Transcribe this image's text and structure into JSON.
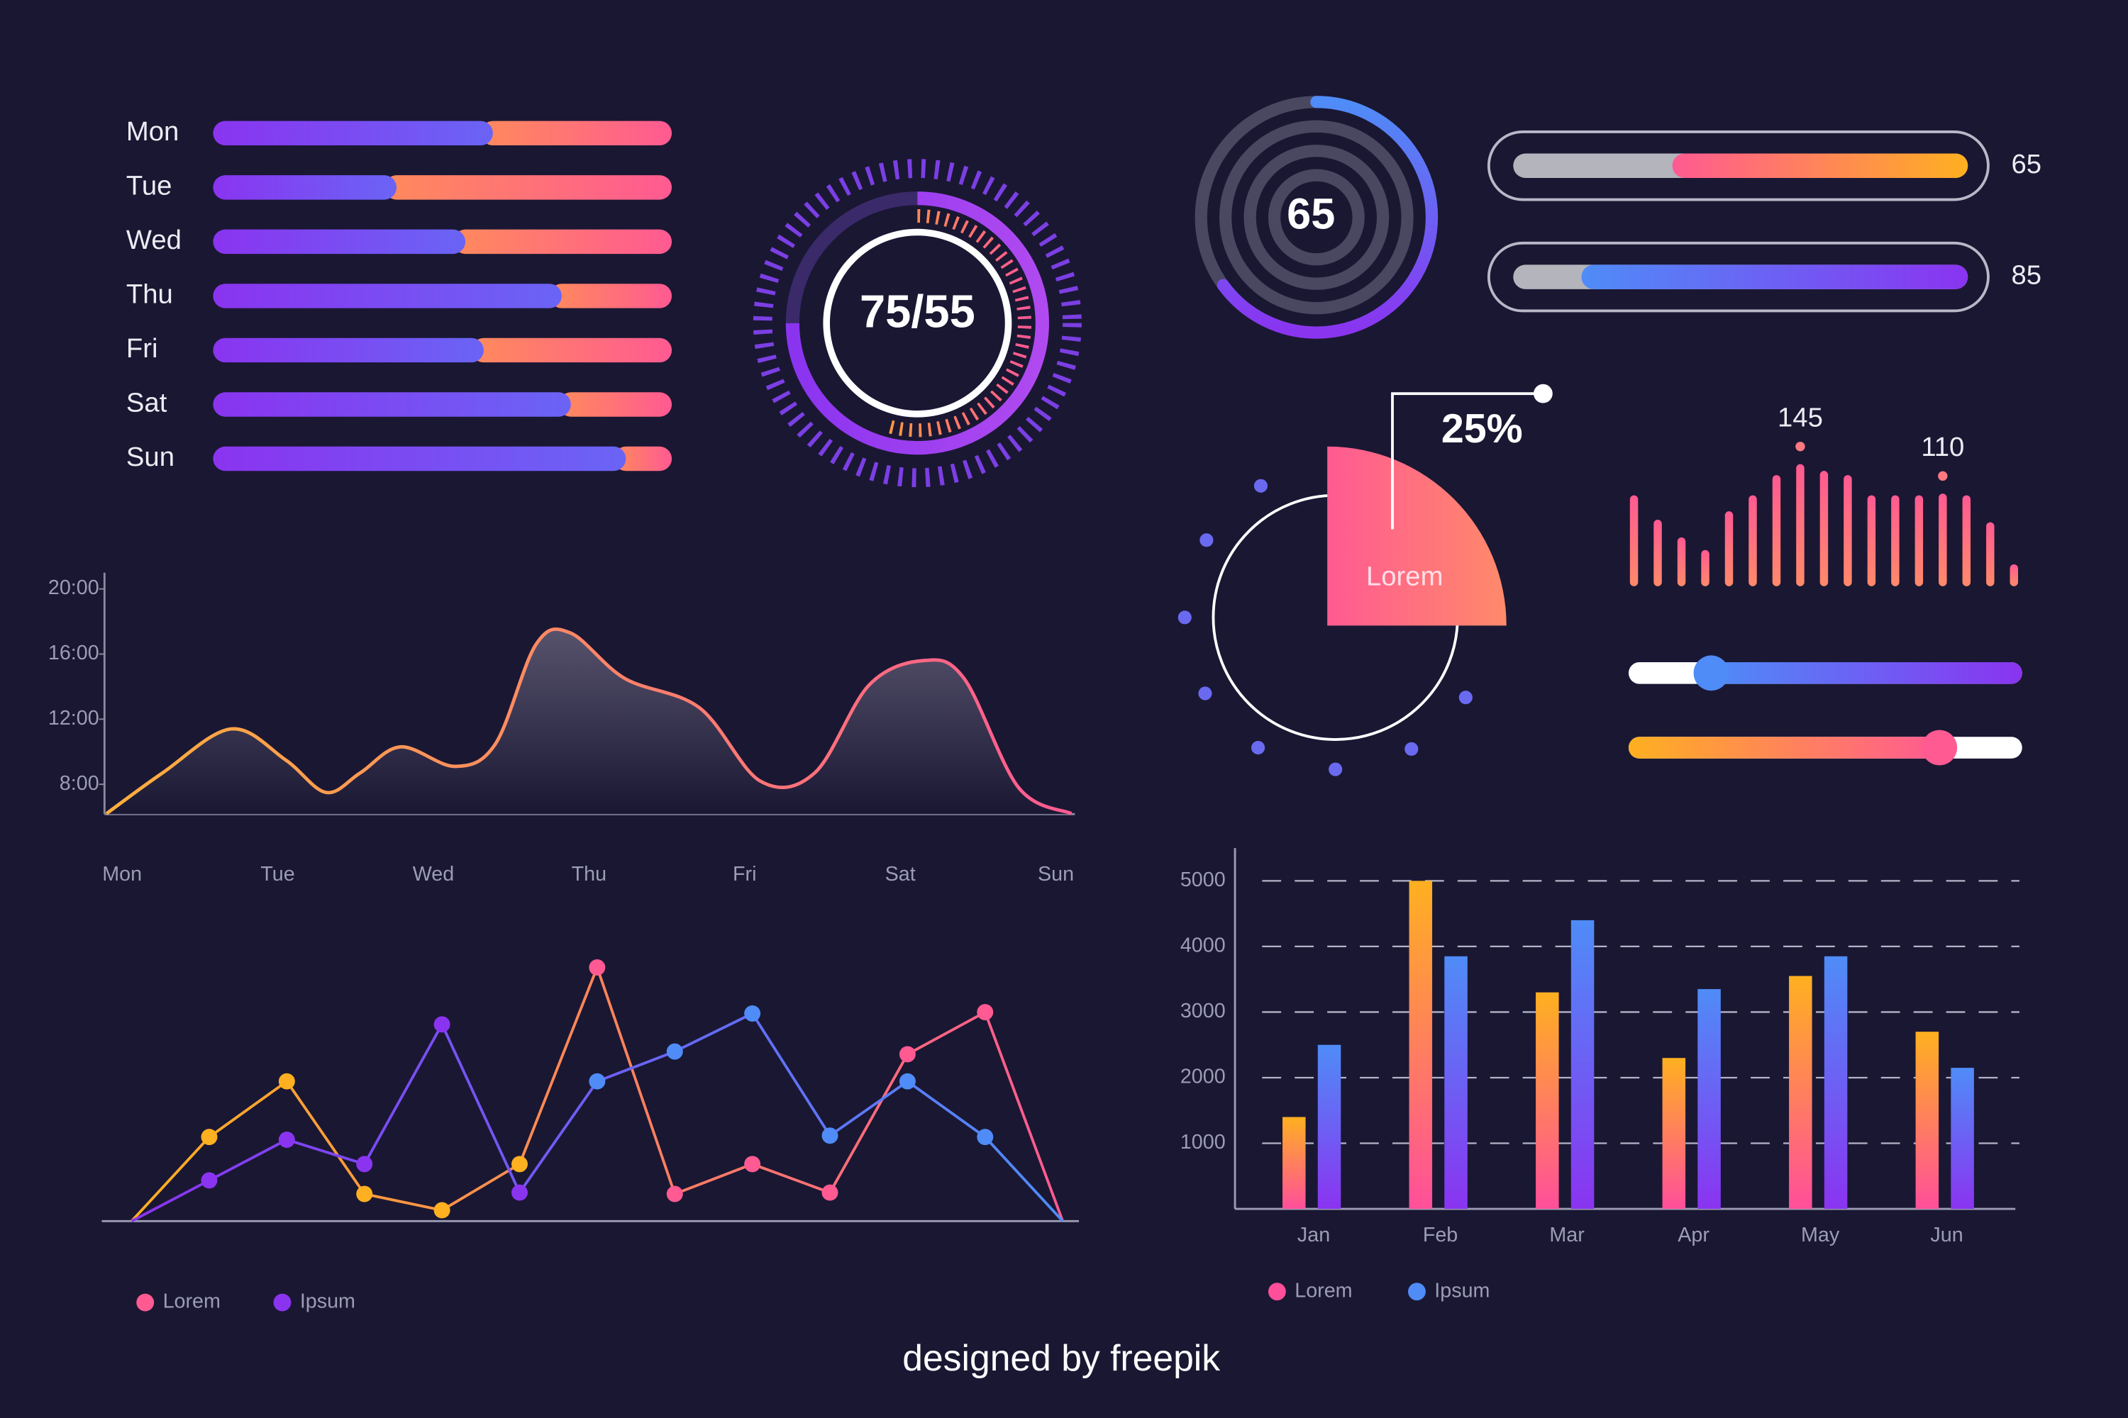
{
  "chart_data": [
    {
      "type": "stacked-bar",
      "categories": [
        "Mon",
        "Tue",
        "Wed",
        "Thu",
        "Fri",
        "Sat",
        "Sun"
      ],
      "xlim": [
        0,
        100
      ],
      "series": [
        {
          "color": [
            "#8a34f0",
            "#6a64f5"
          ],
          "values": [
            61,
            40,
            55,
            76,
            59,
            78,
            90
          ]
        },
        {
          "color": [
            "#ff8a5c",
            "#ff5a92"
          ],
          "values": [
            39,
            60,
            45,
            24,
            41,
            22,
            10
          ]
        }
      ]
    },
    {
      "type": "gauge",
      "lim": [
        0,
        100
      ],
      "values": [
        75,
        55
      ],
      "value_label": "75/55",
      "colors": [
        "#8a34f0",
        "#ff9a3c"
      ]
    },
    {
      "type": "radial",
      "lim": [
        0,
        100
      ],
      "value": 65,
      "color": [
        "#4f8cf7",
        "#8a34f0"
      ]
    },
    {
      "type": "progress",
      "lim": [
        0,
        100
      ],
      "values": [
        65,
        85
      ],
      "colors": [
        [
          "#ff5a92",
          "#ffb020"
        ],
        [
          "#4f8cf7",
          "#8a34f0"
        ]
      ]
    },
    {
      "type": "pie",
      "lim": [
        0,
        100
      ],
      "categories": [
        "Lorem"
      ],
      "values": [
        25
      ],
      "value_labels": [
        "25%"
      ],
      "color": [
        "#ff5a92",
        "#ff8a6a"
      ]
    },
    {
      "type": "bar",
      "values": [
        108,
        79,
        58,
        43,
        89,
        108,
        132,
        145,
        137,
        132,
        108,
        108,
        108,
        110,
        108,
        76,
        26
      ],
      "value_labels": [
        null,
        null,
        null,
        null,
        null,
        null,
        null,
        "145",
        null,
        null,
        null,
        null,
        null,
        "110",
        null,
        null,
        null
      ],
      "color": [
        "#ff5a92",
        "#ff8a6a"
      ]
    },
    {
      "type": "slider",
      "lim": [
        0,
        100
      ],
      "values": [
        21,
        79
      ],
      "colors": [
        [
          "#4f8cf7",
          "#8a34f0"
        ],
        [
          "#ffb020",
          "#ff5a92"
        ]
      ],
      "filled": [
        "after",
        "before"
      ]
    },
    {
      "type": "area",
      "xlim": [
        -0.1,
        6.1
      ],
      "ylim": [
        6,
        21
      ],
      "x": [
        -0.1,
        0.26,
        0.7,
        1.05,
        1.31,
        1.53,
        1.79,
        2.14,
        2.4,
        2.66,
        2.88,
        3.23,
        3.71,
        4.1,
        4.45,
        4.8,
        5.15,
        5.41,
        5.76,
        6.1
      ],
      "values": [
        6.2,
        8.7,
        11.4,
        9.5,
        7.5,
        8.7,
        10.3,
        9.1,
        10.5,
        16.6,
        17.3,
        14.5,
        12.7,
        8.2,
        8.7,
        14.1,
        15.6,
        14.5,
        7.8,
        6.2
      ],
      "xticks": [
        {
          "value": 0,
          "label": "Mon"
        },
        {
          "value": 1,
          "label": "Tue"
        },
        {
          "value": 2,
          "label": "Wed"
        },
        {
          "value": 3,
          "label": "Thu"
        },
        {
          "value": 4,
          "label": "Fri"
        },
        {
          "value": 5,
          "label": "Sat"
        },
        {
          "value": 6,
          "label": "Sun"
        }
      ],
      "yticks": [
        {
          "value": 8,
          "label": "8:00"
        },
        {
          "value": 12,
          "label": "12:00"
        },
        {
          "value": 16,
          "label": "16:00"
        },
        {
          "value": 20,
          "label": "20:00"
        }
      ],
      "color": [
        "#ffb03c",
        "#ff5a92"
      ]
    },
    {
      "type": "line",
      "ylim": [
        0,
        100
      ],
      "series": [
        {
          "name": "Lorem",
          "color": [
            "#ffb020",
            "#ff5a92"
          ],
          "values": [
            0,
            31,
            51.5,
            10,
            4,
            21,
            93.5,
            10,
            21,
            10.5,
            61.5,
            77,
            0
          ]
        },
        {
          "name": "Ipsum",
          "color": [
            "#8a34f0",
            "#4f8cf7"
          ],
          "values": [
            0,
            15,
            30,
            21,
            72.5,
            10.5,
            51.5,
            62.5,
            76.5,
            31.5,
            51.5,
            31,
            0
          ]
        }
      ]
    },
    {
      "type": "grouped-bar",
      "categories": [
        "Jan",
        "Feb",
        "Mar",
        "Apr",
        "May",
        "Jun"
      ],
      "ylim": [
        0,
        5500
      ],
      "yticks": [
        1000,
        2000,
        3000,
        4000,
        5000
      ],
      "grid": true,
      "series": [
        {
          "name": "Lorem",
          "color": [
            "#ffb020",
            "#ff4f9a"
          ],
          "values": [
            1400,
            5000,
            3300,
            2300,
            3550,
            2700
          ]
        },
        {
          "name": "Ipsum",
          "color": [
            "#4f8cf7",
            "#8a34f0"
          ],
          "values": [
            2500,
            3850,
            4400,
            3350,
            3850,
            2150
          ]
        }
      ]
    }
  ],
  "footer": {
    "credit": "designed by freepik"
  }
}
